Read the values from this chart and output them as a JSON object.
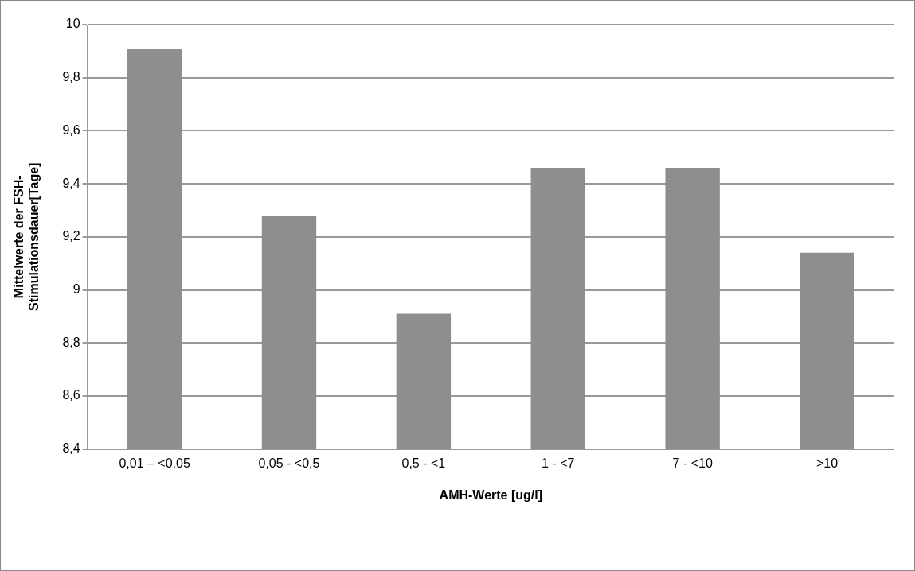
{
  "chart_data": {
    "type": "bar",
    "xlabel": "AMH-Werte [ug/l]",
    "ylabel": "Mittelwerte der FSH-\nStimulationsdauer[Tage]",
    "categories": [
      "0,01 – <0,05",
      "0,05 - <0,5",
      "0,5 - <1",
      "1 - <7",
      "7 - <10",
      ">10"
    ],
    "values": [
      9.91,
      9.28,
      8.91,
      9.46,
      9.46,
      9.14
    ],
    "color": "#8e8e8e",
    "ylim": [
      8.4,
      10
    ],
    "yticks": [
      {
        "value": 8.4,
        "label": "8,4"
      },
      {
        "value": 8.6,
        "label": "8,6"
      },
      {
        "value": 8.8,
        "label": "8,8"
      },
      {
        "value": 9,
        "label": "9"
      },
      {
        "value": 9.2,
        "label": "9,2"
      },
      {
        "value": 9.4,
        "label": "9,4"
      },
      {
        "value": 9.6,
        "label": "9,6"
      },
      {
        "value": 9.8,
        "label": "9,8"
      },
      {
        "value": 10,
        "label": "10"
      }
    ],
    "grid": "y"
  }
}
